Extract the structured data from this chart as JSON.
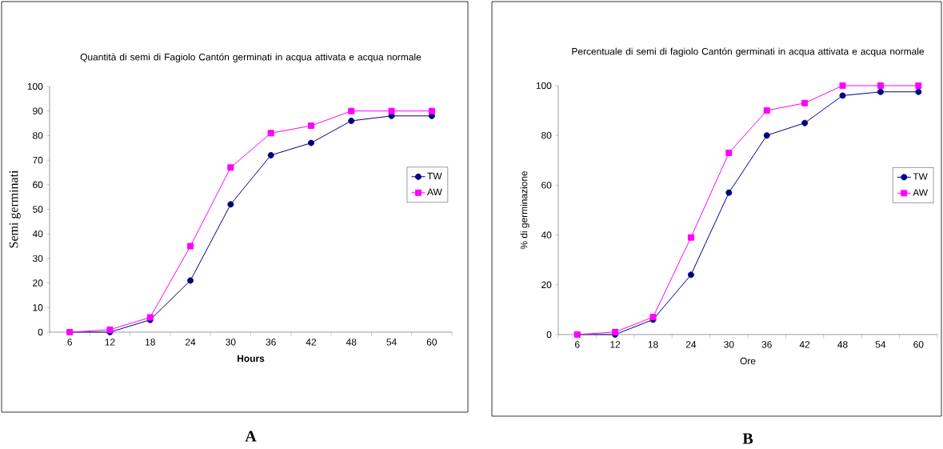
{
  "chart_data": [
    {
      "type": "line",
      "title": "Quantità di semi di Fagiolo Cantón germinati in acqua attivata e acqua normale",
      "xlabel": "Hours",
      "ylabel": "Semi germinati",
      "categories": [
        "6",
        "12",
        "18",
        "24",
        "30",
        "36",
        "42",
        "48",
        "54",
        "60"
      ],
      "series": [
        {
          "name": "TW",
          "color": "#000080",
          "marker": "circle",
          "values": [
            0,
            0,
            5,
            21,
            52,
            72,
            77,
            86,
            88,
            88
          ]
        },
        {
          "name": "AW",
          "color": "#ff00ff",
          "marker": "square",
          "values": [
            0,
            1,
            6,
            35,
            67,
            81,
            84,
            90,
            90,
            90
          ]
        }
      ],
      "ylim": [
        0,
        100
      ],
      "yticks": [
        0,
        10,
        20,
        30,
        40,
        50,
        60,
        70,
        80,
        90,
        100
      ],
      "grid": false,
      "legend": "right",
      "line_style": "solid",
      "annotations": [
        "A"
      ]
    },
    {
      "type": "line",
      "title": "Percentuale di semi di fagiolo Cantón germinati in acqua attivata e acqua normale",
      "xlabel": "Ore",
      "ylabel": "% di germinazione",
      "categories": [
        "6",
        "12",
        "18",
        "24",
        "30",
        "36",
        "42",
        "48",
        "54",
        "60"
      ],
      "series": [
        {
          "name": "TW",
          "color": "#000080",
          "marker": "circle",
          "values": [
            0,
            0,
            6,
            24,
            57,
            80,
            85,
            96,
            97.5,
            97.5
          ]
        },
        {
          "name": "AW",
          "color": "#ff00ff",
          "marker": "square",
          "values": [
            0,
            1,
            7,
            39,
            73,
            90,
            93,
            100,
            100,
            100
          ]
        }
      ],
      "ylim": [
        0,
        100
      ],
      "yticks": [
        0,
        20,
        40,
        60,
        80,
        100
      ],
      "grid": false,
      "legend": "right",
      "line_style": "solid",
      "annotations": [
        "B"
      ]
    }
  ]
}
